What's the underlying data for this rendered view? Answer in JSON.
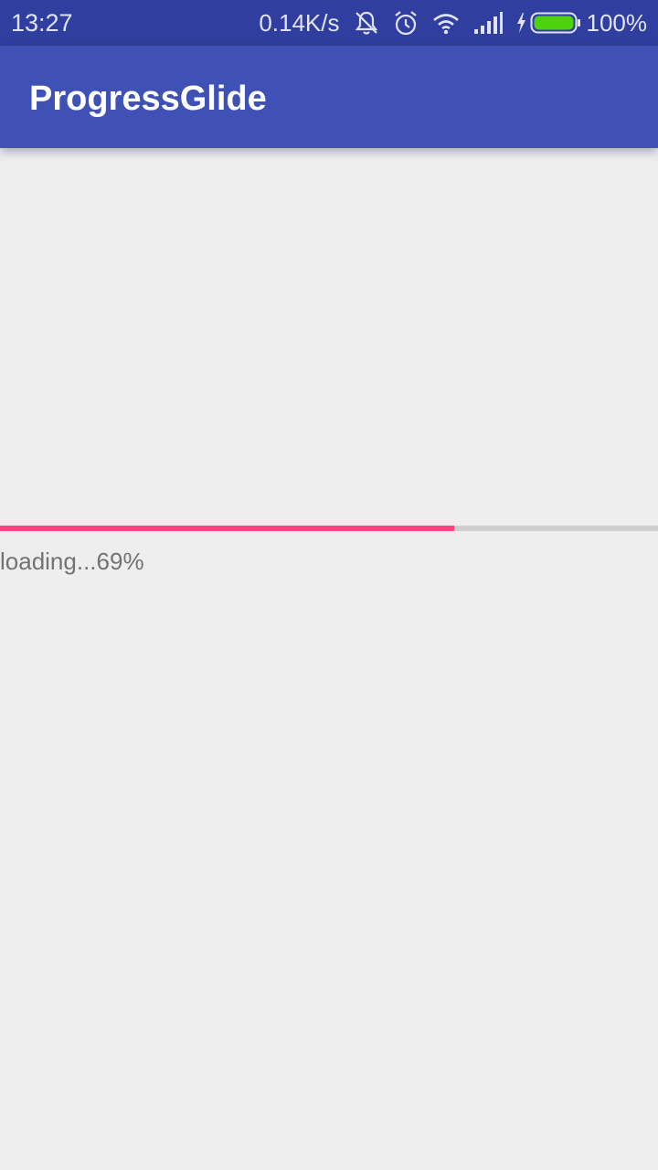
{
  "status_bar": {
    "time": "13:27",
    "net_speed": "0.14K/s",
    "icons": [
      "notifications-off-icon",
      "alarm-icon",
      "wifi-icon",
      "signal-icon",
      "charging-icon",
      "battery-icon"
    ],
    "battery_text": "100%",
    "battery_level": 1.0,
    "battery_color": "#4cd30b"
  },
  "app_bar": {
    "title": "ProgressGlide",
    "color": "#3f51b5"
  },
  "main": {
    "progress": {
      "value_fraction": 0.69,
      "fill_color": "#ff4081",
      "track_color": "#cfcfcf",
      "label": "loading...69%"
    }
  }
}
